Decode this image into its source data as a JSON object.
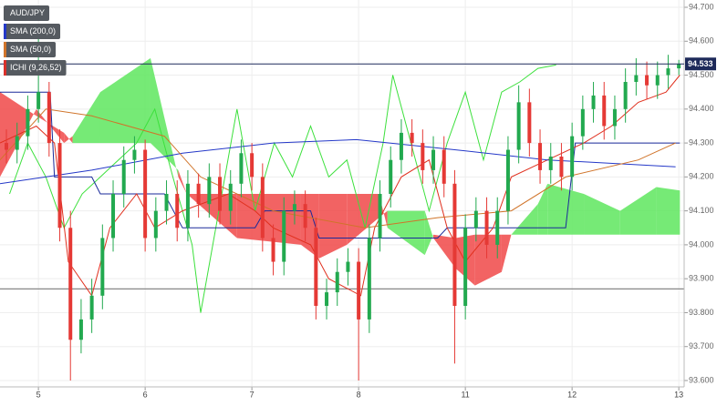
{
  "chart_data": {
    "type": "candlestick",
    "symbol": "AUD/JPY",
    "xlim": [
      -0.36,
      6.05
    ],
    "ylim": [
      93.6,
      94.7
    ],
    "xticks": [
      {
        "value": 0,
        "label": "5"
      },
      {
        "value": 1,
        "label": "6"
      },
      {
        "value": 2,
        "label": "7"
      },
      {
        "value": 3,
        "label": "8"
      },
      {
        "value": 4,
        "label": "11"
      },
      {
        "value": 5,
        "label": "12"
      },
      {
        "value": 6,
        "label": "13"
      }
    ],
    "yticks": [
      {
        "value": 94.7,
        "label": "94.700"
      },
      {
        "value": 94.6,
        "label": "94.600"
      },
      {
        "value": 94.5,
        "label": "94.500"
      },
      {
        "value": 94.4,
        "label": "94.400"
      },
      {
        "value": 94.3,
        "label": "94.300"
      },
      {
        "value": 94.2,
        "label": "94.200"
      },
      {
        "value": 94.1,
        "label": "94.100"
      },
      {
        "value": 94.0,
        "label": "94.000"
      },
      {
        "value": 93.9,
        "label": "93.900"
      },
      {
        "value": 93.8,
        "label": "93.800"
      },
      {
        "value": 93.7,
        "label": "93.700"
      },
      {
        "value": 93.6,
        "label": "93.600"
      }
    ],
    "grid": true,
    "up_color": "#22a94f",
    "down_color": "#e53935",
    "x": [
      -0.3,
      -0.2,
      -0.1,
      0,
      0.1,
      0.2,
      0.3,
      0.4,
      0.5,
      0.6,
      0.7,
      0.8,
      0.9,
      1,
      1.1,
      1.2,
      1.3,
      1.4,
      1.5,
      1.6,
      1.7,
      1.8,
      1.9,
      2,
      2.1,
      2.2,
      2.3,
      2.4,
      2.5,
      2.6,
      2.7,
      2.8,
      2.9,
      3,
      3.1,
      3.2,
      3.3,
      3.4,
      3.5,
      3.6,
      3.7,
      3.8,
      3.9,
      4,
      4.1,
      4.2,
      4.3,
      4.4,
      4.5,
      4.6,
      4.7,
      4.8,
      4.9,
      5,
      5.1,
      5.2,
      5.3,
      5.4,
      5.5,
      5.6,
      5.7,
      5.8,
      5.9,
      6
    ],
    "open": [
      94.3,
      94.28,
      94.32,
      94.4,
      94.45,
      94.3,
      94.05,
      93.72,
      93.78,
      93.85,
      94.02,
      94.15,
      94.25,
      94.28,
      94.02,
      94.1,
      94.15,
      94.05,
      94.18,
      94.12,
      94.2,
      94.1,
      94.18,
      94.27,
      94.2,
      94.02,
      93.95,
      94.1,
      94.12,
      94.05,
      93.82,
      93.86,
      93.92,
      93.95,
      93.78,
      94.02,
      94.15,
      94.25,
      94.33,
      94.3,
      94.22,
      94.28,
      94.18,
      93.82,
      94.05,
      94.1,
      94.0,
      94.1,
      94.28,
      94.42,
      94.3,
      94.22,
      94.26,
      94.2,
      94.32,
      94.4,
      94.44,
      94.35,
      94.4,
      94.48,
      94.5,
      94.47,
      94.5,
      94.52
    ],
    "high": [
      94.34,
      94.36,
      94.44,
      94.62,
      94.48,
      94.34,
      94.1,
      93.84,
      93.9,
      94.06,
      94.19,
      94.29,
      94.32,
      94.31,
      94.14,
      94.19,
      94.19,
      94.22,
      94.21,
      94.24,
      94.24,
      94.22,
      94.31,
      94.3,
      94.24,
      94.06,
      94.14,
      94.16,
      94.16,
      94.08,
      93.9,
      93.96,
      93.99,
      93.99,
      94.06,
      94.19,
      94.29,
      94.37,
      94.37,
      94.34,
      94.32,
      94.32,
      94.22,
      94.09,
      94.14,
      94.14,
      94.14,
      94.32,
      94.47,
      94.46,
      94.34,
      94.3,
      94.3,
      94.36,
      94.44,
      94.48,
      94.48,
      94.44,
      94.52,
      94.55,
      94.54,
      94.54,
      94.56,
      94.545
    ],
    "low": [
      94.24,
      94.24,
      94.28,
      94.36,
      94.26,
      94.01,
      93.6,
      93.68,
      93.74,
      93.81,
      93.98,
      94.11,
      94.21,
      93.98,
      93.98,
      94.06,
      94.01,
      94.01,
      94.08,
      94.08,
      94.06,
      94.06,
      94.14,
      94.16,
      93.98,
      93.91,
      93.91,
      94.06,
      94.01,
      93.78,
      93.78,
      93.82,
      93.88,
      93.6,
      93.74,
      93.98,
      94.11,
      94.21,
      94.26,
      94.18,
      94.18,
      94.14,
      93.65,
      93.78,
      94.01,
      93.96,
      93.96,
      94.06,
      94.24,
      94.26,
      94.18,
      94.18,
      94.16,
      94.16,
      94.28,
      94.36,
      94.31,
      94.31,
      94.36,
      94.44,
      94.43,
      94.43,
      94.46,
      94.5
    ],
    "close": [
      94.28,
      94.32,
      94.4,
      94.45,
      94.3,
      94.05,
      93.72,
      93.78,
      93.85,
      94.02,
      94.15,
      94.25,
      94.28,
      94.02,
      94.1,
      94.15,
      94.05,
      94.18,
      94.12,
      94.2,
      94.1,
      94.18,
      94.27,
      94.2,
      94.02,
      93.95,
      94.1,
      94.12,
      94.05,
      93.82,
      93.86,
      93.92,
      93.95,
      93.78,
      94.02,
      94.15,
      94.25,
      94.33,
      94.3,
      94.22,
      94.28,
      94.18,
      93.82,
      94.05,
      94.1,
      94.0,
      94.1,
      94.28,
      94.42,
      94.3,
      94.22,
      94.26,
      94.2,
      94.32,
      94.4,
      94.44,
      94.35,
      94.4,
      94.48,
      94.5,
      94.47,
      94.5,
      94.52,
      94.533
    ],
    "series": [
      {
        "name": "SMA (200,0)",
        "color": "#2438c8",
        "x": [
          -0.36,
          0.5,
          1.35,
          2.2,
          2.98,
          3.9,
          4.77,
          5.97
        ],
        "values": [
          94.18,
          94.22,
          94.27,
          94.3,
          94.31,
          94.28,
          94.25,
          94.23
        ]
      },
      {
        "name": "SMA (50,0)",
        "color": "#d0742a",
        "x": [
          -0.36,
          0.07,
          0.5,
          1.18,
          1.52,
          2.2,
          3.06,
          3.74,
          4.43,
          4.94,
          5.62,
          5.97
        ],
        "values": [
          94.25,
          94.4,
          94.38,
          94.32,
          94.2,
          94.1,
          94.05,
          94.08,
          94.1,
          94.2,
          94.25,
          94.3
        ]
      }
    ],
    "ichimoku": {
      "name": "ICHI (9,26,52)",
      "color": "#d9302a",
      "tenkan": {
        "color": "#e0301e",
        "x": [
          -0.36,
          -0.02,
          0.15,
          0.28,
          0.5,
          0.67,
          0.92,
          1.09,
          1.35,
          1.78,
          2.03,
          2.2,
          2.55,
          2.72,
          3.02,
          3.15,
          3.4,
          3.66,
          3.83,
          4.0,
          4.26,
          4.43,
          4.77,
          5.11,
          5.37,
          5.62,
          5.88,
          6.01
        ],
        "values": [
          94.3,
          94.35,
          94.3,
          93.95,
          93.85,
          94.05,
          94.15,
          94.05,
          94.1,
          94.15,
          94.1,
          94.05,
          94.0,
          93.9,
          93.85,
          94.05,
          94.2,
          94.25,
          94.05,
          93.95,
          94.05,
          94.2,
          94.25,
          94.3,
          94.35,
          94.42,
          94.45,
          94.5
        ]
      },
      "kijun": {
        "color": "#1a2a9a",
        "x": [
          -0.36,
          0.11,
          0.15,
          0.5,
          0.58,
          1.18,
          1.35,
          2.03,
          2.12,
          2.55,
          2.63,
          3.23,
          3.74,
          3.83,
          4.94,
          5.03,
          6.01
        ],
        "values": [
          94.45,
          94.45,
          94.2,
          94.2,
          94.15,
          94.15,
          94.05,
          94.05,
          94.1,
          94.1,
          94.02,
          94.02,
          94.02,
          94.05,
          94.05,
          94.3,
          94.3
        ]
      },
      "chikou": {
        "color": "#3ce03c",
        "x": [
          -0.27,
          -0.1,
          0.07,
          0.24,
          0.41,
          0.58,
          0.75,
          0.92,
          1.09,
          1.26,
          1.44,
          1.52,
          1.69,
          1.86,
          2.03,
          2.21,
          2.38,
          2.55,
          2.72,
          2.89,
          3.06,
          3.23,
          3.32,
          3.49,
          3.66,
          3.83,
          4.0,
          4.17,
          4.34,
          4.51,
          4.68,
          4.85
        ],
        "values": [
          94.15,
          94.3,
          94.2,
          94.05,
          94.15,
          94.2,
          94.25,
          94.3,
          94.4,
          94.2,
          94.0,
          93.8,
          94.1,
          94.4,
          94.1,
          94.3,
          94.2,
          94.35,
          94.2,
          94.25,
          94.05,
          94.3,
          94.5,
          94.3,
          94.1,
          94.3,
          94.45,
          94.25,
          94.45,
          94.48,
          94.52,
          94.53
        ]
      },
      "cloud": {
        "up_color": "#5ee65e",
        "down_color": "#f04848",
        "x": [
          -0.36,
          -0.02,
          0.24,
          0.32,
          0.58,
          1.05,
          1.31,
          1.39,
          1.86,
          2.46,
          2.63,
          2.89,
          3.19,
          3.27,
          3.62,
          3.7,
          3.91,
          4.09,
          4.34,
          4.43,
          4.68,
          4.77,
          5.11,
          5.45,
          5.79,
          6.01
        ],
        "span_a": [
          94.2,
          94.4,
          94.3,
          94.32,
          94.45,
          94.55,
          94.2,
          94.15,
          94.02,
          94.0,
          93.96,
          94.0,
          94.08,
          94.1,
          94.1,
          94.02,
          93.93,
          93.88,
          93.92,
          94.03,
          94.12,
          94.18,
          94.15,
          94.1,
          94.17,
          94.16
        ],
        "span_b": [
          94.45,
          94.38,
          94.33,
          94.3,
          94.3,
          94.3,
          94.22,
          94.15,
          94.15,
          94.15,
          94.15,
          94.15,
          94.15,
          94.05,
          93.97,
          94.03,
          94.02,
          94.03,
          94.03,
          94.03,
          94.03,
          94.03,
          94.03,
          94.03,
          94.03,
          94.03
        ]
      }
    },
    "price_line": {
      "value": 94.533,
      "label": "94.533",
      "color": "#1e2a5a"
    },
    "level": {
      "value": 93.87,
      "color": "#888888"
    }
  }
}
